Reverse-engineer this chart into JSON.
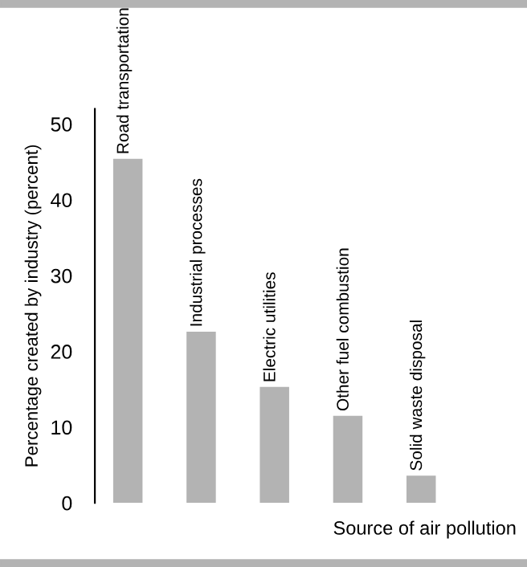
{
  "chart_data": {
    "type": "bar",
    "xlabel": "Source of air pollution",
    "ylabel": "Percentage created by industry (percent)",
    "categories": [
      "Road transportation",
      "Industrial processes",
      "Electric utilities",
      "Other fuel combustion",
      "Solid waste disposal"
    ],
    "values": [
      45.4,
      22.6,
      15.3,
      11.5,
      3.6
    ],
    "color": "#b3b3b3",
    "ylim": [
      0,
      52
    ],
    "yticks": [
      0,
      10,
      20,
      30,
      40,
      50
    ],
    "grid": false
  }
}
